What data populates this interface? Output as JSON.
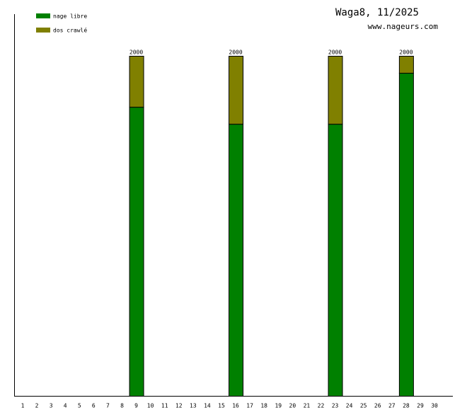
{
  "chart_data": {
    "type": "stacked-bar",
    "title": "Waga8, 11/2025",
    "subtitle": "www.nageurs.com",
    "categories": [
      "1",
      "2",
      "3",
      "4",
      "5",
      "6",
      "7",
      "8",
      "9",
      "10",
      "11",
      "12",
      "13",
      "14",
      "15",
      "16",
      "17",
      "18",
      "19",
      "20",
      "21",
      "22",
      "23",
      "24",
      "25",
      "26",
      "27",
      "28",
      "29",
      "30"
    ],
    "series": [
      {
        "name": "nage libre",
        "color": "#008000",
        "values": [
          0,
          0,
          0,
          0,
          0,
          0,
          0,
          0,
          1700,
          0,
          0,
          0,
          0,
          0,
          0,
          1600,
          0,
          0,
          0,
          0,
          0,
          0,
          1600,
          0,
          0,
          0,
          0,
          1900,
          0,
          0
        ]
      },
      {
        "name": "dos crawlé",
        "color": "#808000",
        "values": [
          0,
          0,
          0,
          0,
          0,
          0,
          0,
          0,
          300,
          0,
          0,
          0,
          0,
          0,
          0,
          400,
          0,
          0,
          0,
          0,
          0,
          0,
          400,
          0,
          0,
          0,
          0,
          100,
          0,
          0
        ]
      }
    ],
    "totals": [
      null,
      null,
      null,
      null,
      null,
      null,
      null,
      null,
      "2000",
      null,
      null,
      null,
      null,
      null,
      null,
      "2000",
      null,
      null,
      null,
      null,
      null,
      null,
      "2000",
      null,
      null,
      null,
      null,
      "2000",
      null,
      null
    ],
    "ylim": [
      0,
      2000
    ]
  }
}
